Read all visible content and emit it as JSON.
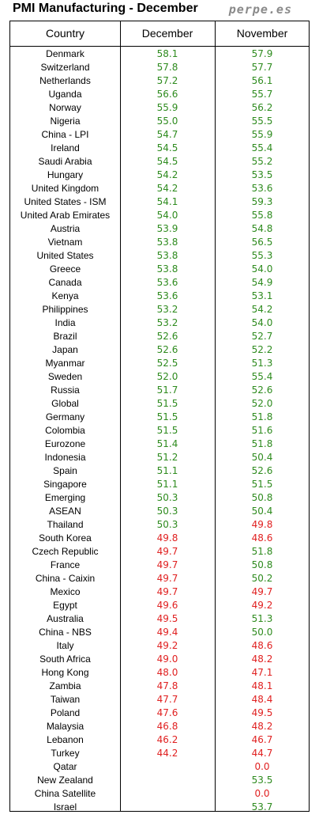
{
  "header": {
    "title": "PMI Manufacturing - December",
    "brand": "perpe.es"
  },
  "colors": {
    "above50": "#2e8b1e",
    "below50": "#e02020",
    "border": "#000000"
  },
  "chart_data": {
    "type": "table",
    "columns": [
      "Country",
      "December",
      "November"
    ],
    "threshold": 50.0,
    "rows": [
      {
        "country": "Denmark",
        "december": "58.1",
        "november": "57.9"
      },
      {
        "country": "Switzerland",
        "december": "57.8",
        "november": "57.7"
      },
      {
        "country": "Netherlands",
        "december": "57.2",
        "november": "56.1"
      },
      {
        "country": "Uganda",
        "december": "56.6",
        "november": "55.7"
      },
      {
        "country": "Norway",
        "december": "55.9",
        "november": "56.2"
      },
      {
        "country": "Nigeria",
        "december": "55.0",
        "november": "55.5"
      },
      {
        "country": "China - LPI",
        "december": "54.7",
        "november": "55.9"
      },
      {
        "country": "Ireland",
        "december": "54.5",
        "november": "55.4"
      },
      {
        "country": "Saudi Arabia",
        "december": "54.5",
        "november": "55.2"
      },
      {
        "country": "Hungary",
        "december": "54.2",
        "november": "53.5"
      },
      {
        "country": "United Kingdom",
        "december": "54.2",
        "november": "53.6"
      },
      {
        "country": "United States - ISM",
        "december": "54.1",
        "november": "59.3"
      },
      {
        "country": "United Arab Emirates",
        "december": "54.0",
        "november": "55.8"
      },
      {
        "country": "Austria",
        "december": "53.9",
        "november": "54.8"
      },
      {
        "country": "Vietnam",
        "december": "53.8",
        "november": "56.5"
      },
      {
        "country": "United States",
        "december": "53.8",
        "november": "55.3"
      },
      {
        "country": "Greece",
        "december": "53.8",
        "november": "54.0"
      },
      {
        "country": "Canada",
        "december": "53.6",
        "november": "54.9"
      },
      {
        "country": "Kenya",
        "december": "53.6",
        "november": "53.1"
      },
      {
        "country": "Philippines",
        "december": "53.2",
        "november": "54.2"
      },
      {
        "country": "India",
        "december": "53.2",
        "november": "54.0"
      },
      {
        "country": "Brazil",
        "december": "52.6",
        "november": "52.7"
      },
      {
        "country": "Japan",
        "december": "52.6",
        "november": "52.2"
      },
      {
        "country": "Myanmar",
        "december": "52.5",
        "november": "51.3"
      },
      {
        "country": "Sweden",
        "december": "52.0",
        "november": "55.4"
      },
      {
        "country": "Russia",
        "december": "51.7",
        "november": "52.6"
      },
      {
        "country": "Global",
        "december": "51.5",
        "november": "52.0"
      },
      {
        "country": "Germany",
        "december": "51.5",
        "november": "51.8"
      },
      {
        "country": "Colombia",
        "december": "51.5",
        "november": "51.6"
      },
      {
        "country": "Eurozone",
        "december": "51.4",
        "november": "51.8"
      },
      {
        "country": "Indonesia",
        "december": "51.2",
        "november": "50.4"
      },
      {
        "country": "Spain",
        "december": "51.1",
        "november": "52.6"
      },
      {
        "country": "Singapore",
        "december": "51.1",
        "november": "51.5"
      },
      {
        "country": "Emerging",
        "december": "50.3",
        "november": "50.8"
      },
      {
        "country": "ASEAN",
        "december": "50.3",
        "november": "50.4"
      },
      {
        "country": "Thailand",
        "december": "50.3",
        "november": "49.8"
      },
      {
        "country": "South Korea",
        "december": "49.8",
        "november": "48.6"
      },
      {
        "country": "Czech Republic",
        "december": "49.7",
        "november": "51.8"
      },
      {
        "country": "France",
        "december": "49.7",
        "november": "50.8"
      },
      {
        "country": "China - Caixin",
        "december": "49.7",
        "november": "50.2"
      },
      {
        "country": "Mexico",
        "december": "49.7",
        "november": "49.7"
      },
      {
        "country": "Egypt",
        "december": "49.6",
        "november": "49.2"
      },
      {
        "country": "Australia",
        "december": "49.5",
        "november": "51.3"
      },
      {
        "country": "China - NBS",
        "december": "49.4",
        "november": "50.0"
      },
      {
        "country": "Italy",
        "december": "49.2",
        "november": "48.6"
      },
      {
        "country": "South Africa",
        "december": "49.0",
        "november": "48.2"
      },
      {
        "country": "Hong Kong",
        "december": "48.0",
        "november": "47.1"
      },
      {
        "country": "Zambia",
        "december": "47.8",
        "november": "48.1"
      },
      {
        "country": "Taiwan",
        "december": "47.7",
        "november": "48.4"
      },
      {
        "country": "Poland",
        "december": "47.6",
        "november": "49.5"
      },
      {
        "country": "Malaysia",
        "december": "46.8",
        "november": "48.2"
      },
      {
        "country": "Lebanon",
        "december": "46.2",
        "november": "46.7"
      },
      {
        "country": "Turkey",
        "december": "44.2",
        "november": "44.7"
      },
      {
        "country": "Qatar",
        "december": "",
        "november": "0.0"
      },
      {
        "country": "New Zealand",
        "december": "",
        "november": "53.5"
      },
      {
        "country": "China Satellite",
        "december": "",
        "november": "0.0"
      },
      {
        "country": "Israel",
        "december": "",
        "november": "53.7"
      }
    ]
  }
}
